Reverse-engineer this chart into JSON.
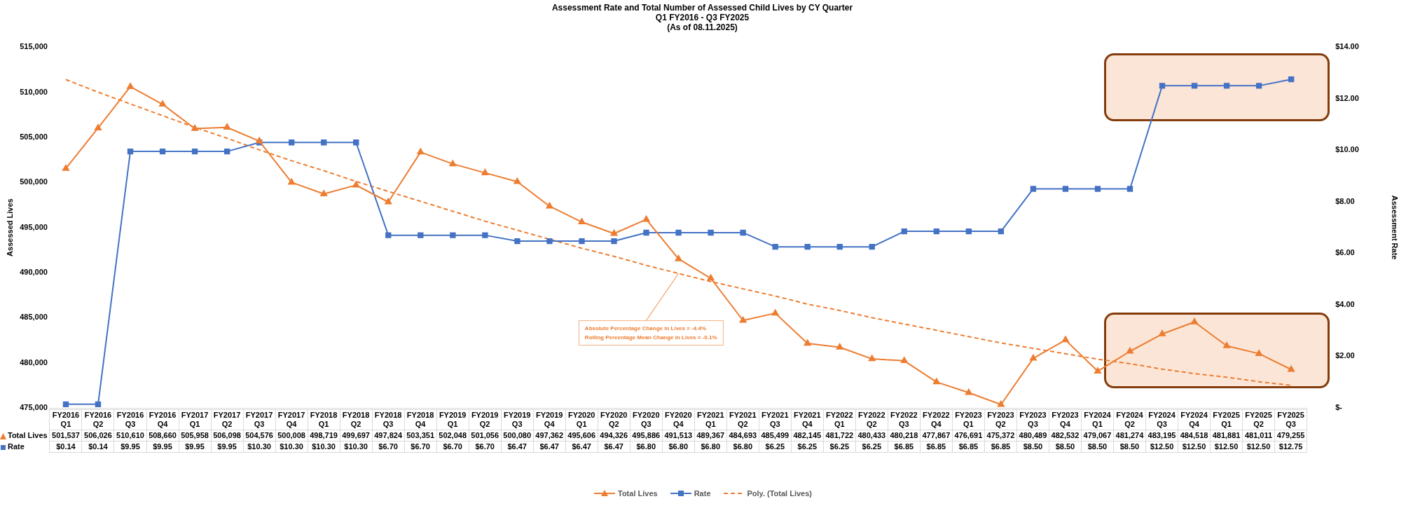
{
  "chart_data": {
    "type": "line",
    "title": "Assessment Rate and Total Number of Assessed Child Lives by CY Quarter",
    "subtitle": "Q1 FY2016 - Q3 FY2025\n(As of 08.11.2025)",
    "ylabel": "Assessed Lives",
    "y2label": "Assessment Rate",
    "categories": [
      "FY2016 Q1",
      "FY2016 Q2",
      "FY2016 Q3",
      "FY2016 Q4",
      "FY2017 Q1",
      "FY2017 Q2",
      "FY2017 Q3",
      "FY2017 Q4",
      "FY2018 Q1",
      "FY2018 Q2",
      "FY2018 Q3",
      "FY2018 Q4",
      "FY2019 Q1",
      "FY2019 Q2",
      "FY2019 Q3",
      "FY2019 Q4",
      "FY2020 Q1",
      "FY2020 Q2",
      "FY2020 Q3",
      "FY2020 Q4",
      "FY2021 Q1",
      "FY2021 Q2",
      "FY2021 Q3",
      "FY2021 Q4",
      "FY2022 Q1",
      "FY2022 Q2",
      "FY2022 Q3",
      "FY2022 Q4",
      "FY2023 Q1",
      "FY2023 Q2",
      "FY2023 Q3",
      "FY2023 Q4",
      "FY2024 Q1",
      "FY2024 Q2",
      "FY2024 Q3",
      "FY2024 Q4",
      "FY2025 Q1",
      "FY2025 Q2",
      "FY2025 Q3"
    ],
    "series": [
      {
        "name": "Total Lives",
        "color": "#ed7d31",
        "marker": "triangle",
        "values": [
          501537,
          506026,
          510610,
          508660,
          505958,
          506098,
          504576,
          500008,
          498719,
          499697,
          497824,
          503351,
          502048,
          501056,
          500080,
          497362,
          495606,
          494326,
          495886,
          491513,
          489367,
          484693,
          485499,
          482145,
          481722,
          480433,
          480218,
          477867,
          476691,
          475372,
          480489,
          482532,
          479067,
          481274,
          483195,
          484518,
          481881,
          481011,
          479255
        ],
        "value_labels": [
          "501,537",
          "506,026",
          "510,610",
          "508,660",
          "505,958",
          "506,098",
          "504,576",
          "500,008",
          "498,719",
          "499,697",
          "497,824",
          "503,351",
          "502,048",
          "501,056",
          "500,080",
          "497,362",
          "495,606",
          "494,326",
          "495,886",
          "491,513",
          "489,367",
          "484,693",
          "485,499",
          "482,145",
          "481,722",
          "480,433",
          "480,218",
          "477,867",
          "476,691",
          "475,372",
          "480,489",
          "482,532",
          "479,067",
          "481,274",
          "483,195",
          "484,518",
          "481,881",
          "481,011",
          "479,255"
        ]
      },
      {
        "name": "Rate",
        "color": "#4472c4",
        "marker": "square",
        "axis": "y2",
        "values": [
          0.14,
          0.14,
          9.95,
          9.95,
          9.95,
          9.95,
          10.3,
          10.3,
          10.3,
          10.3,
          6.7,
          6.7,
          6.7,
          6.7,
          6.47,
          6.47,
          6.47,
          6.47,
          6.8,
          6.8,
          6.8,
          6.8,
          6.25,
          6.25,
          6.25,
          6.25,
          6.85,
          6.85,
          6.85,
          6.85,
          8.5,
          8.5,
          8.5,
          8.5,
          12.5,
          12.5,
          12.5,
          12.5,
          12.75
        ],
        "value_labels": [
          "$0.14",
          "$0.14",
          "$9.95",
          "$9.95",
          "$9.95",
          "$9.95",
          "$10.30",
          "$10.30",
          "$10.30",
          "$10.30",
          "$6.70",
          "$6.70",
          "$6.70",
          "$6.70",
          "$6.47",
          "$6.47",
          "$6.47",
          "$6.47",
          "$6.80",
          "$6.80",
          "$6.80",
          "$6.80",
          "$6.25",
          "$6.25",
          "$6.25",
          "$6.25",
          "$6.85",
          "$6.85",
          "$6.85",
          "$6.85",
          "$8.50",
          "$8.50",
          "$8.50",
          "$8.50",
          "$12.50",
          "$12.50",
          "$12.50",
          "$12.50",
          "$12.75"
        ]
      },
      {
        "name": "Poly. (Total Lives)",
        "color": "#ed7d31",
        "marker": "none",
        "line_style": "dashed",
        "values": [
          511400,
          510000,
          508700,
          507400,
          506100,
          504900,
          503600,
          502400,
          501300,
          500100,
          499000,
          497900,
          496800,
          495700,
          494700,
          493700,
          492700,
          491800,
          490800,
          489900,
          489000,
          488200,
          487400,
          486500,
          485800,
          485000,
          484300,
          483600,
          482900,
          482200,
          481600,
          481000,
          480400,
          479900,
          479300,
          478800,
          478400,
          477900,
          477500
        ]
      }
    ],
    "ylim": [
      475000,
      515000
    ],
    "yticks": [
      {
        "value": 475000,
        "label": "475,000"
      },
      {
        "value": 480000,
        "label": "480,000"
      },
      {
        "value": 485000,
        "label": "485,000"
      },
      {
        "value": 490000,
        "label": "490,000"
      },
      {
        "value": 495000,
        "label": "495,000"
      },
      {
        "value": 500000,
        "label": "500,000"
      },
      {
        "value": 505000,
        "label": "505,000"
      },
      {
        "value": 510000,
        "label": "510,000"
      },
      {
        "value": 515000,
        "label": "515,000"
      }
    ],
    "y2lim": [
      0,
      14
    ],
    "y2ticks": [
      {
        "value": 0,
        "label": "$-"
      },
      {
        "value": 2,
        "label": "$2.00"
      },
      {
        "value": 4,
        "label": "$4.00"
      },
      {
        "value": 6,
        "label": "$6.00"
      },
      {
        "value": 8,
        "label": "$8.00"
      },
      {
        "value": 10,
        "label": "$10.00"
      },
      {
        "value": 12,
        "label": "$12.00"
      },
      {
        "value": 14,
        "label": "$14.00"
      }
    ],
    "legend": "bottom",
    "annotations": [
      {
        "text": "Absolute Percentage Change in Lives = -4.4%",
        "x": "FY2020 Q4",
        "y": 489900
      },
      "Rolling Percentage Mean Change in Lives = -0.1%"
    ]
  }
}
